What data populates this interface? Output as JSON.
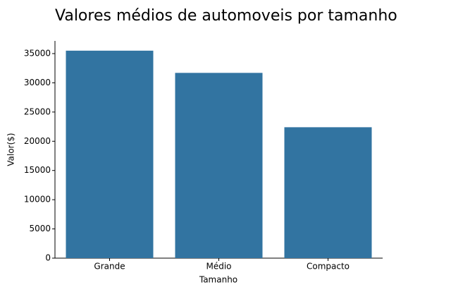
{
  "chart_data": {
    "type": "bar",
    "title": "Valores médios de automoveis por tamanho",
    "x_label": "Tamanho",
    "y_label": "Valor($)",
    "categories": [
      "Grande",
      "Médio",
      "Compacto"
    ],
    "values": [
      35500,
      31700,
      22400
    ],
    "color": "#3274a1",
    "ylim": [
      0,
      37170
    ],
    "yticks": [
      0,
      5000,
      10000,
      15000,
      20000,
      25000,
      30000,
      35000
    ],
    "grid": false
  }
}
